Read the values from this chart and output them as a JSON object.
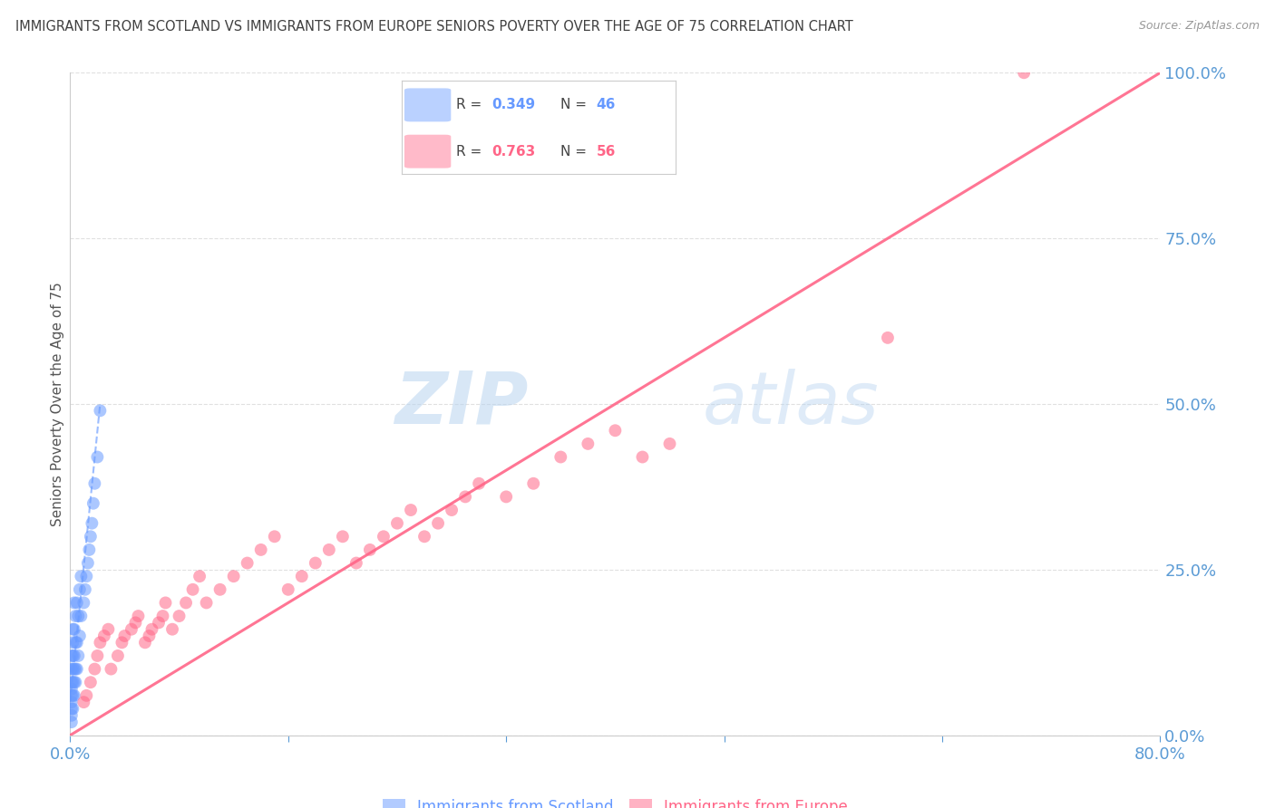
{
  "title": "IMMIGRANTS FROM SCOTLAND VS IMMIGRANTS FROM EUROPE SENIORS POVERTY OVER THE AGE OF 75 CORRELATION CHART",
  "source": "Source: ZipAtlas.com",
  "ylabel": "Seniors Poverty Over the Age of 75",
  "xlim": [
    0.0,
    0.8
  ],
  "ylim": [
    0.0,
    1.0
  ],
  "yticks": [
    0.0,
    0.25,
    0.5,
    0.75,
    1.0
  ],
  "yticklabels": [
    "0.0%",
    "25.0%",
    "50.0%",
    "75.0%",
    "100.0%"
  ],
  "scotland_color": "#6699ff",
  "europe_color": "#ff6688",
  "scotland_R": 0.349,
  "scotland_N": 46,
  "europe_R": 0.763,
  "europe_N": 56,
  "legend_label_scotland": "Immigrants from Scotland",
  "legend_label_europe": "Immigrants from Europe",
  "watermark_zip": "ZIP",
  "watermark_atlas": "atlas",
  "background_color": "#ffffff",
  "grid_color": "#e0e0e0",
  "axis_label_color": "#5b9bd5",
  "title_color": "#404040",
  "scotland_points_x": [
    0.001,
    0.001,
    0.001,
    0.001,
    0.001,
    0.001,
    0.001,
    0.001,
    0.001,
    0.002,
    0.002,
    0.002,
    0.002,
    0.002,
    0.002,
    0.002,
    0.003,
    0.003,
    0.003,
    0.003,
    0.003,
    0.003,
    0.004,
    0.004,
    0.004,
    0.004,
    0.005,
    0.005,
    0.005,
    0.006,
    0.006,
    0.007,
    0.007,
    0.008,
    0.008,
    0.01,
    0.011,
    0.012,
    0.013,
    0.014,
    0.015,
    0.016,
    0.017,
    0.018,
    0.02,
    0.022
  ],
  "scotland_points_y": [
    0.02,
    0.03,
    0.04,
    0.05,
    0.06,
    0.07,
    0.08,
    0.1,
    0.12,
    0.04,
    0.06,
    0.08,
    0.1,
    0.12,
    0.14,
    0.16,
    0.06,
    0.08,
    0.1,
    0.12,
    0.16,
    0.2,
    0.08,
    0.1,
    0.14,
    0.18,
    0.1,
    0.14,
    0.2,
    0.12,
    0.18,
    0.15,
    0.22,
    0.18,
    0.24,
    0.2,
    0.22,
    0.24,
    0.26,
    0.28,
    0.3,
    0.32,
    0.35,
    0.38,
    0.42,
    0.49
  ],
  "europe_points_x": [
    0.01,
    0.012,
    0.015,
    0.018,
    0.02,
    0.022,
    0.025,
    0.028,
    0.03,
    0.035,
    0.038,
    0.04,
    0.045,
    0.048,
    0.05,
    0.055,
    0.058,
    0.06,
    0.065,
    0.068,
    0.07,
    0.075,
    0.08,
    0.085,
    0.09,
    0.095,
    0.1,
    0.11,
    0.12,
    0.13,
    0.14,
    0.15,
    0.16,
    0.17,
    0.18,
    0.19,
    0.2,
    0.21,
    0.22,
    0.23,
    0.24,
    0.25,
    0.26,
    0.27,
    0.28,
    0.29,
    0.3,
    0.32,
    0.34,
    0.36,
    0.38,
    0.4,
    0.42,
    0.44,
    0.6,
    0.7
  ],
  "europe_points_y": [
    0.05,
    0.06,
    0.08,
    0.1,
    0.12,
    0.14,
    0.15,
    0.16,
    0.1,
    0.12,
    0.14,
    0.15,
    0.16,
    0.17,
    0.18,
    0.14,
    0.15,
    0.16,
    0.17,
    0.18,
    0.2,
    0.16,
    0.18,
    0.2,
    0.22,
    0.24,
    0.2,
    0.22,
    0.24,
    0.26,
    0.28,
    0.3,
    0.22,
    0.24,
    0.26,
    0.28,
    0.3,
    0.26,
    0.28,
    0.3,
    0.32,
    0.34,
    0.3,
    0.32,
    0.34,
    0.36,
    0.38,
    0.36,
    0.38,
    0.42,
    0.44,
    0.46,
    0.42,
    0.44,
    0.6,
    1.0
  ],
  "europe_line_x": [
    0.0,
    0.8
  ],
  "europe_line_y": [
    0.0,
    1.0
  ],
  "scotland_line_x": [
    0.0,
    0.022
  ],
  "scotland_line_y": [
    0.05,
    0.5
  ]
}
